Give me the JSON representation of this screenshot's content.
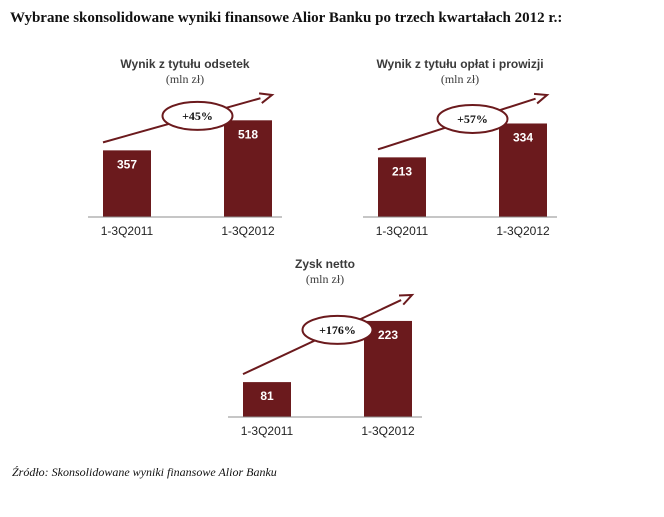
{
  "page": {
    "title": "Wybrane skonsolidowane wyniki finansowe Alior Banku po trzech kwartałach 2012 r.:",
    "source": "Źródło: Skonsolidowane wyniki finansowe Alior Banku"
  },
  "colors": {
    "bar": "#6b1a1d",
    "arrow": "#6b1a1d",
    "axis": "#8c8c8c",
    "ellipse_fill": "#ffffff"
  },
  "chart_data": [
    {
      "type": "bar",
      "title": "Wynik z tytułu odsetek",
      "subtitle": "(mln zł)",
      "categories": [
        "1-3Q2011",
        "1-3Q2012"
      ],
      "values": [
        357,
        518
      ],
      "value_labels": [
        "357",
        "518"
      ],
      "growth": "+45%",
      "ylim": [
        0,
        600
      ],
      "grid": false,
      "legend": "none"
    },
    {
      "type": "bar",
      "title": "Wynik z tytułu opłat i prowizji",
      "subtitle": "(mln zł)",
      "categories": [
        "1-3Q2011",
        "1-3Q2012"
      ],
      "values": [
        213,
        334
      ],
      "value_labels": [
        "213",
        "334"
      ],
      "growth": "+57%",
      "ylim": [
        0,
        400
      ],
      "grid": false,
      "legend": "none"
    },
    {
      "type": "bar",
      "title": "Zysk netto",
      "subtitle": "(mln zł)",
      "categories": [
        "1-3Q2011",
        "1-3Q2012"
      ],
      "values": [
        81,
        223
      ],
      "value_labels": [
        "81",
        "223"
      ],
      "growth": "+176%",
      "ylim": [
        0,
        260
      ],
      "grid": false,
      "legend": "none"
    }
  ]
}
